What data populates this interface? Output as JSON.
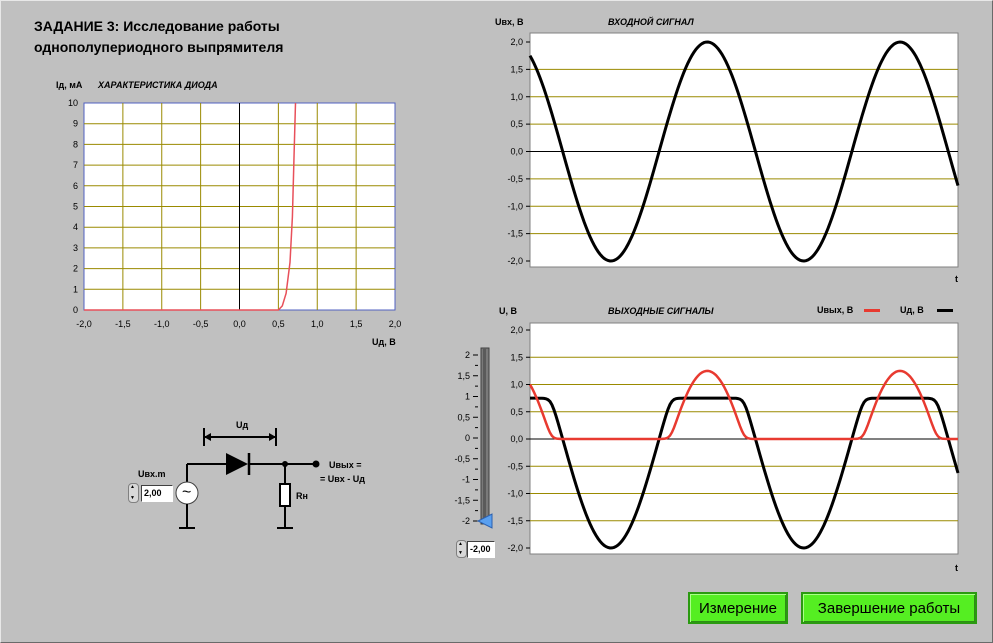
{
  "title": {
    "line1": "ЗАДАНИЕ 3: Исследование работы",
    "line2": "однополупериодного выпрямителя"
  },
  "diode_chart": {
    "ylabel": "Iд, мА",
    "title": "ХАРАКТЕРИСТИКА ДИОДА",
    "xlabel": "Uд, В",
    "xticks": [
      "-2,0",
      "-1,5",
      "-1,0",
      "-0,5",
      "0,0",
      "0,5",
      "1,0",
      "1,5",
      "2,0"
    ],
    "yticks": [
      "0",
      "1",
      "2",
      "3",
      "4",
      "5",
      "6",
      "7",
      "8",
      "9",
      "10"
    ]
  },
  "input_chart": {
    "ylabel": "Uвх, В",
    "title": "ВХОДНОЙ СИГНАЛ",
    "xlabel": "t",
    "yticks": [
      "-2,0",
      "-1,5",
      "-1,0",
      "-0,5",
      "0,0",
      "0,5",
      "1,0",
      "1,5",
      "2,0"
    ]
  },
  "output_chart": {
    "ylabel": "U, В",
    "title": "ВЫХОДНЫЕ СИГНАЛЫ",
    "xlabel": "t",
    "legend_out": "Uвых, В",
    "legend_d": "Uд, В",
    "yticks": [
      "-2,0",
      "-1,5",
      "-1,0",
      "-0,5",
      "0,0",
      "0,5",
      "1,0",
      "1,5",
      "2,0"
    ]
  },
  "slider": {
    "ticks": [
      "2",
      "1,5",
      "1",
      "0,5",
      "0",
      "-0,5",
      "-1",
      "-1,5",
      "-2"
    ],
    "value_text": "-2,00",
    "value": -2
  },
  "circuit": {
    "ud_label": "Uд",
    "uin_label": "Uвх.m",
    "uin_value": "2,00",
    "rn_label": "Rн",
    "uout_line1": "Uвых =",
    "uout_line2": "= Uвх - Uд",
    "source_symbol": "~"
  },
  "buttons": {
    "measure": "Измерение",
    "finish": "Завершение работы"
  },
  "colors": {
    "plot_bg": "#ffffff",
    "grid": "#9a8a00",
    "output_line": "#e83a30",
    "diode_line": "#000000",
    "iv_line": "#e8505a",
    "button": "#55ee22",
    "slider_pointer": "#5aa0f0"
  },
  "chart_data": [
    {
      "type": "line",
      "title": "ХАРАКТЕРИСТИКА ДИОДА",
      "xlabel": "Uд, В",
      "ylabel": "Iд, мА",
      "xlim": [
        -2,
        2
      ],
      "ylim": [
        0,
        10
      ],
      "series": [
        {
          "values_x": [
            -2.0,
            0.5,
            0.55,
            0.6,
            0.65,
            0.68,
            0.7,
            0.72
          ],
          "values_y": [
            0,
            0,
            0.2,
            0.8,
            2.3,
            4.5,
            7.2,
            10
          ]
        }
      ]
    },
    {
      "type": "line",
      "title": "ВХОДНОЙ СИГНАЛ",
      "xlabel": "t",
      "ylabel": "Uвх, В",
      "ylim": [
        -2,
        2
      ],
      "amplitude": 2.0,
      "periods_shown": 2.22,
      "start_value": 1.75
    },
    {
      "type": "line",
      "title": "ВЫХОДНЫЕ СИГНАЛЫ",
      "xlabel": "t",
      "ylabel": "U, В",
      "ylim": [
        -2,
        2
      ],
      "series": [
        {
          "name": "Uвых, В",
          "peak": 1.2,
          "min": 0.0
        },
        {
          "name": "Uд, В",
          "peak": 0.75,
          "min": -2.0
        }
      ]
    }
  ]
}
